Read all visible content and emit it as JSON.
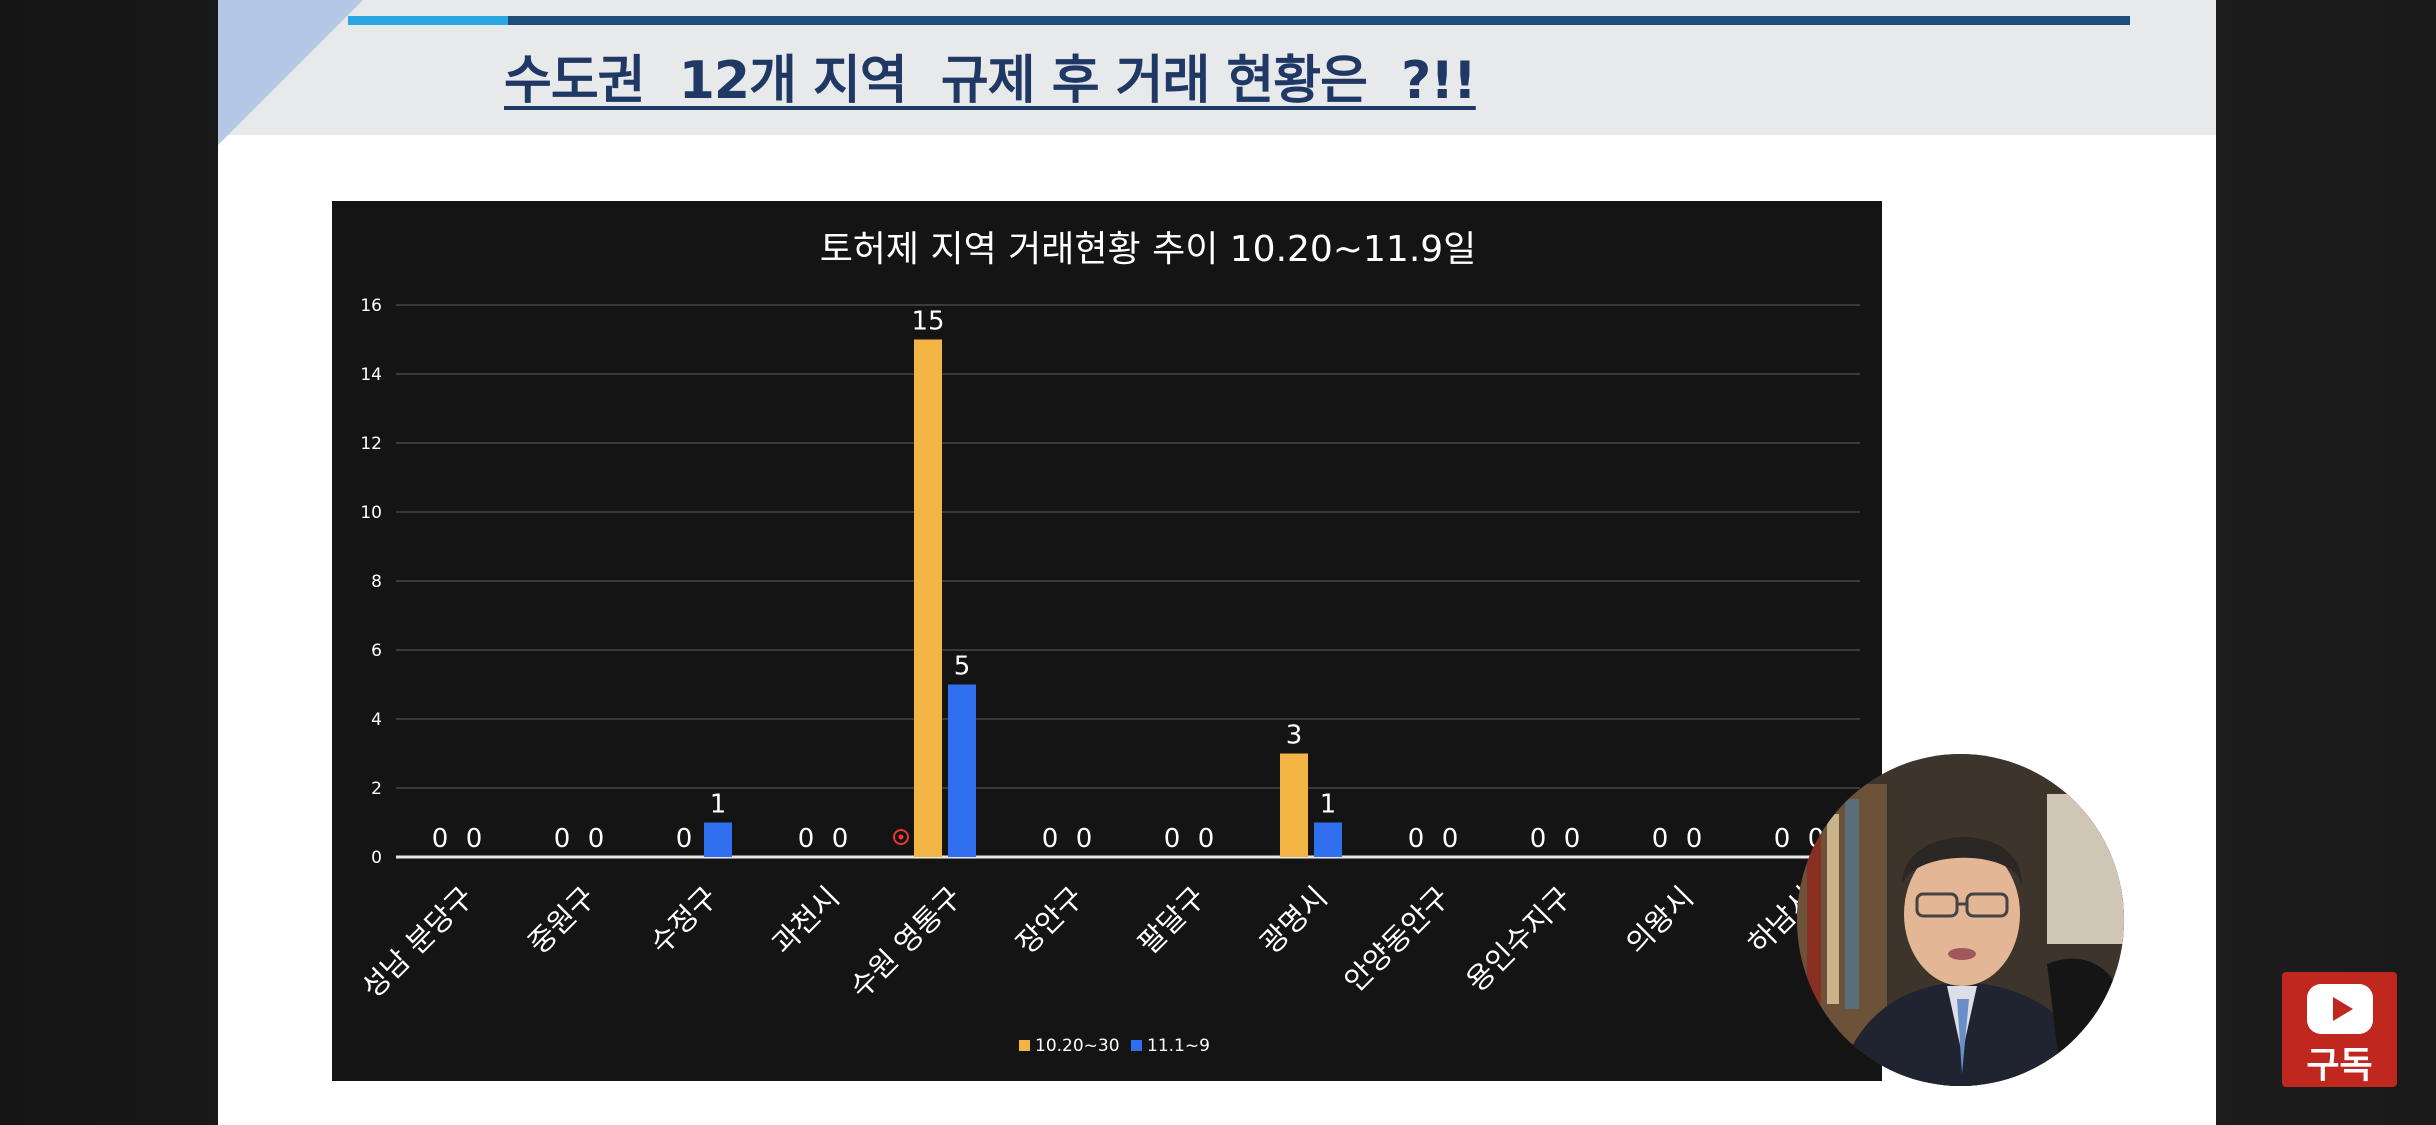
{
  "slide": {
    "title": "수도권  12개 지역  규제 후 거래 현황은  ?!!"
  },
  "chart_data": {
    "type": "bar",
    "title": "토허제 지역 거래현황 추이 10.20~11.9일",
    "categories": [
      "성남 분당구",
      "중원구",
      "수정구",
      "과천시",
      "수원 영통구",
      "장안구",
      "팔달구",
      "광명시",
      "안양동안구",
      "용인수지구",
      "의왕시",
      "하남시"
    ],
    "series": [
      {
        "name": "10.20~30",
        "color": "#f2b544",
        "values": [
          0,
          0,
          0,
          0,
          15,
          0,
          0,
          3,
          0,
          0,
          0,
          0
        ]
      },
      {
        "name": "11.1~9",
        "color": "#2f6ff0",
        "values": [
          0,
          0,
          1,
          0,
          5,
          0,
          0,
          1,
          0,
          0,
          0,
          0
        ]
      }
    ],
    "ylim": [
      0,
      16
    ],
    "yticks": [
      0,
      2,
      4,
      6,
      8,
      10,
      12,
      14,
      16
    ],
    "grid": true,
    "legend": "bottom",
    "data_labels": true
  },
  "overlay": {
    "subscribe_label": "구독"
  },
  "colors": {
    "title": "#1f3864",
    "chart_bg": "#141414",
    "accent_line": "#1f4e79",
    "accent_light": "#2aa7e0",
    "subscribe": "#c0281f"
  }
}
